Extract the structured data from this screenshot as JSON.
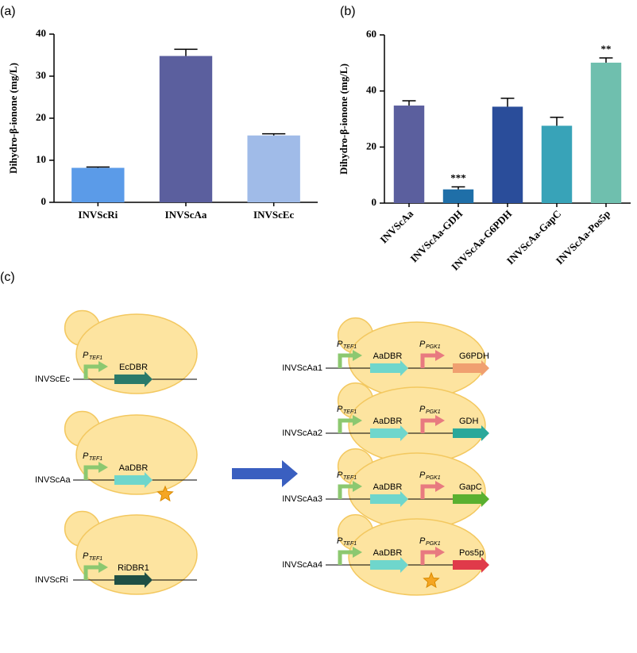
{
  "chart_data": [
    {
      "type": "bar",
      "label": "(a)",
      "y_label": "Dihydro-β-ionone (mg/L)",
      "categories": [
        "INVScRi",
        "INVScAa",
        "INVScEc"
      ],
      "values": [
        8.2,
        34.8,
        15.9
      ],
      "errors": [
        0.2,
        1.6,
        0.4
      ],
      "colors": [
        "#5b9be8",
        "#5b5f9e",
        "#a0bbe8"
      ],
      "ylim": [
        0,
        40
      ],
      "yticks": [
        0,
        10,
        20,
        30,
        40
      ],
      "rotate_labels": false
    },
    {
      "type": "bar",
      "label": "(b)",
      "y_label": "Dihydro-β-ionone (mg/L)",
      "categories": [
        "INVScAa",
        "INVScAa-GDH",
        "INVScAa-G6PDH",
        "INVScAa-GapC",
        "INVScAa-Pos5p"
      ],
      "values": [
        34.8,
        4.9,
        34.4,
        27.6,
        50.1
      ],
      "errors": [
        1.7,
        0.9,
        3.0,
        3.0,
        1.7
      ],
      "annotations": [
        null,
        "***",
        null,
        null,
        "**"
      ],
      "colors": [
        "#5b5f9e",
        "#1f6fa8",
        "#2a4d9a",
        "#38a3b8",
        "#6fbfae"
      ],
      "ylim": [
        0,
        60
      ],
      "yticks": [
        0,
        20,
        40,
        60
      ],
      "rotate_labels": true
    }
  ],
  "diagram": {
    "label": "(c)",
    "tef1": {
      "p": "P",
      "sub": "TEF1"
    },
    "pgk1": {
      "p": "P",
      "sub": "PGK1"
    },
    "left": [
      {
        "name": "INVScEc",
        "gene": "EcDBR",
        "color": "#2a7a6a",
        "star": false
      },
      {
        "name": "INVScAa",
        "gene": "AaDBR",
        "color": "#6fd6cc",
        "star": true
      },
      {
        "name": "INVScRi",
        "gene": "RiDBR1",
        "color": "#1f4f44",
        "star": false
      }
    ],
    "right": [
      {
        "name": "INVScAa1",
        "gene1": "AaDBR",
        "gene2": "G6PDH",
        "color2": "#f0a070",
        "star": false
      },
      {
        "name": "INVScAa2",
        "gene1": "AaDBR",
        "gene2": "GDH",
        "color2": "#2aa89a",
        "star": false
      },
      {
        "name": "INVScAa3",
        "gene1": "AaDBR",
        "gene2": "GapC",
        "color2": "#5ab030",
        "star": false
      },
      {
        "name": "INVScAa4",
        "gene1": "AaDBR",
        "gene2": "Pos5p",
        "color2": "#e03a4a",
        "star": true
      }
    ]
  }
}
